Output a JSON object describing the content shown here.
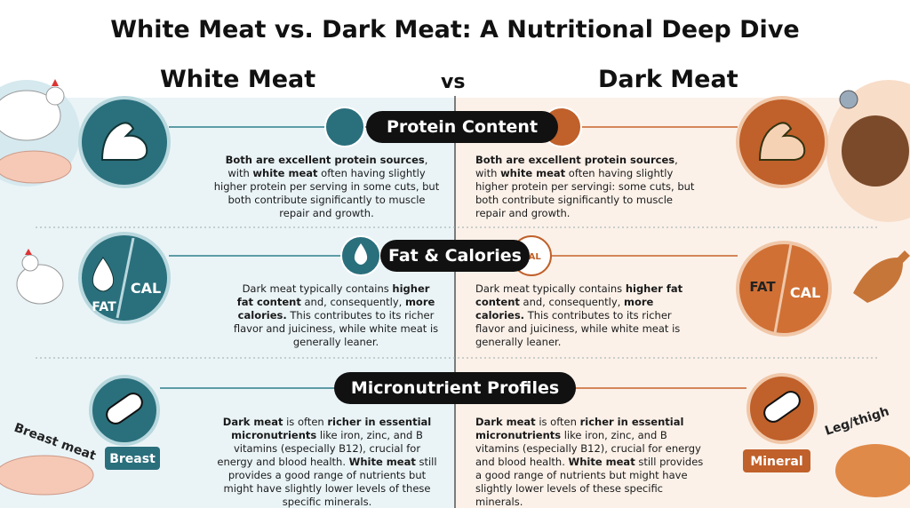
{
  "title": "White Meat vs. Dark Meat: A Nutritional Deep Dive",
  "left_heading": "White Meat",
  "vs": "vs",
  "right_heading": "Dark Meat",
  "sections": [
    {
      "heading": "Protein Content",
      "left_text": [
        {
          "text": "Both are excellent protein sources",
          "bold": true
        },
        {
          "text": ", with ",
          "bold": false
        },
        {
          "text": "white meat",
          "bold": true
        },
        {
          "text": " often having slightly higher protein per serving in some cuts, but both contribute significantly to muscle repair and growth.",
          "bold": false
        }
      ],
      "right_text": [
        {
          "text": "Both are excellent protein sources",
          "bold": true
        },
        {
          "text": ", with ",
          "bold": false
        },
        {
          "text": "white meat",
          "bold": true
        },
        {
          "text": " often having slightly higher protein per servingi: some cuts, but both contribute significantly to muscle repair and growth.",
          "bold": false
        }
      ]
    },
    {
      "heading": "Fat & Calories",
      "left_text": [
        {
          "text": "Dark meat typically contains ",
          "bold": false
        },
        {
          "text": "higher fat content",
          "bold": true
        },
        {
          "text": " and, consequently, ",
          "bold": false
        },
        {
          "text": "more calories.",
          "bold": true
        },
        {
          "text": " This contributes to its richer flavor and juiciness, while white meat is generally leaner.",
          "bold": false
        }
      ],
      "right_text": [
        {
          "text": "Dark meat typically contains ",
          "bold": false
        },
        {
          "text": "higher fat content",
          "bold": true
        },
        {
          "text": " and, consequently, ",
          "bold": false
        },
        {
          "text": "more calories.",
          "bold": true
        },
        {
          "text": " This contributes to its richer flavor and juiciness, while white meat is generally leaner.",
          "bold": false
        }
      ]
    },
    {
      "heading": "Micronutrient Profiles",
      "left_text": [
        {
          "text": "Dark meat",
          "bold": true
        },
        {
          "text": " is often ",
          "bold": false
        },
        {
          "text": "richer in essential micronutrients",
          "bold": true
        },
        {
          "text": " like iron, zinc, and B vitamins (especially B12), crucial for energy and blood health. ",
          "bold": false
        },
        {
          "text": "White meat",
          "bold": true
        },
        {
          "text": " still provides a good range of nutrients but might have slightly lower levels of these specific minerals.",
          "bold": false
        }
      ],
      "right_text": [
        {
          "text": "Dark meat",
          "bold": true
        },
        {
          "text": " is often ",
          "bold": false
        },
        {
          "text": "richer in essential micronutrients",
          "bold": true
        },
        {
          "text": " like iron, zinc, and B vitamins (especially B12), crucial for energy and blood health. ",
          "bold": false
        },
        {
          "text": "White meat",
          "bold": true
        },
        {
          "text": " still provides a good range of nutrients but might have slightly lower levels of these specific minerals.",
          "bold": false
        }
      ]
    }
  ],
  "icon_labels": {
    "fat_left": "FAT",
    "cal_left": "CAL",
    "cal_small": "CAL",
    "fat_right": "FAT",
    "cal_right": "CAL",
    "breast_badge": "Breast",
    "mineral_badge": "Mineral"
  },
  "image_captions": {
    "breast_meat": "Breast meat",
    "leg_thigh": "Leg/thigh"
  }
}
